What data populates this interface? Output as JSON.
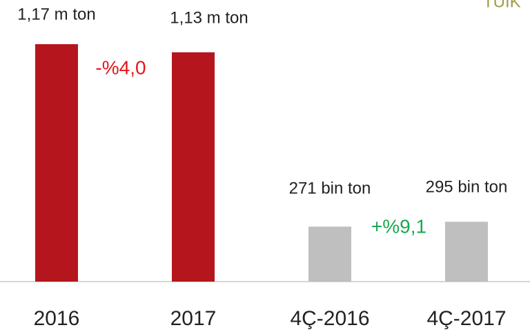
{
  "chart_data": {
    "type": "bar",
    "source": "TÜİK",
    "categories": [
      "2016",
      "2017",
      "4Ç-2016",
      "4Ç-2017"
    ],
    "values": [
      1170000,
      1130000,
      271000,
      295000
    ],
    "value_labels": [
      "1,17 m ton",
      "1,13 m ton",
      "271 bin ton",
      "295 bin ton"
    ],
    "colors": [
      "#b5161d",
      "#b5161d",
      "#bfbfbf",
      "#bfbfbf"
    ],
    "ylim": [
      0,
      1170000
    ],
    "annotations": [
      {
        "text": "-%4,0",
        "color": "#e8141b"
      },
      {
        "text": "+%9,1",
        "color": "#1aa850"
      }
    ]
  }
}
